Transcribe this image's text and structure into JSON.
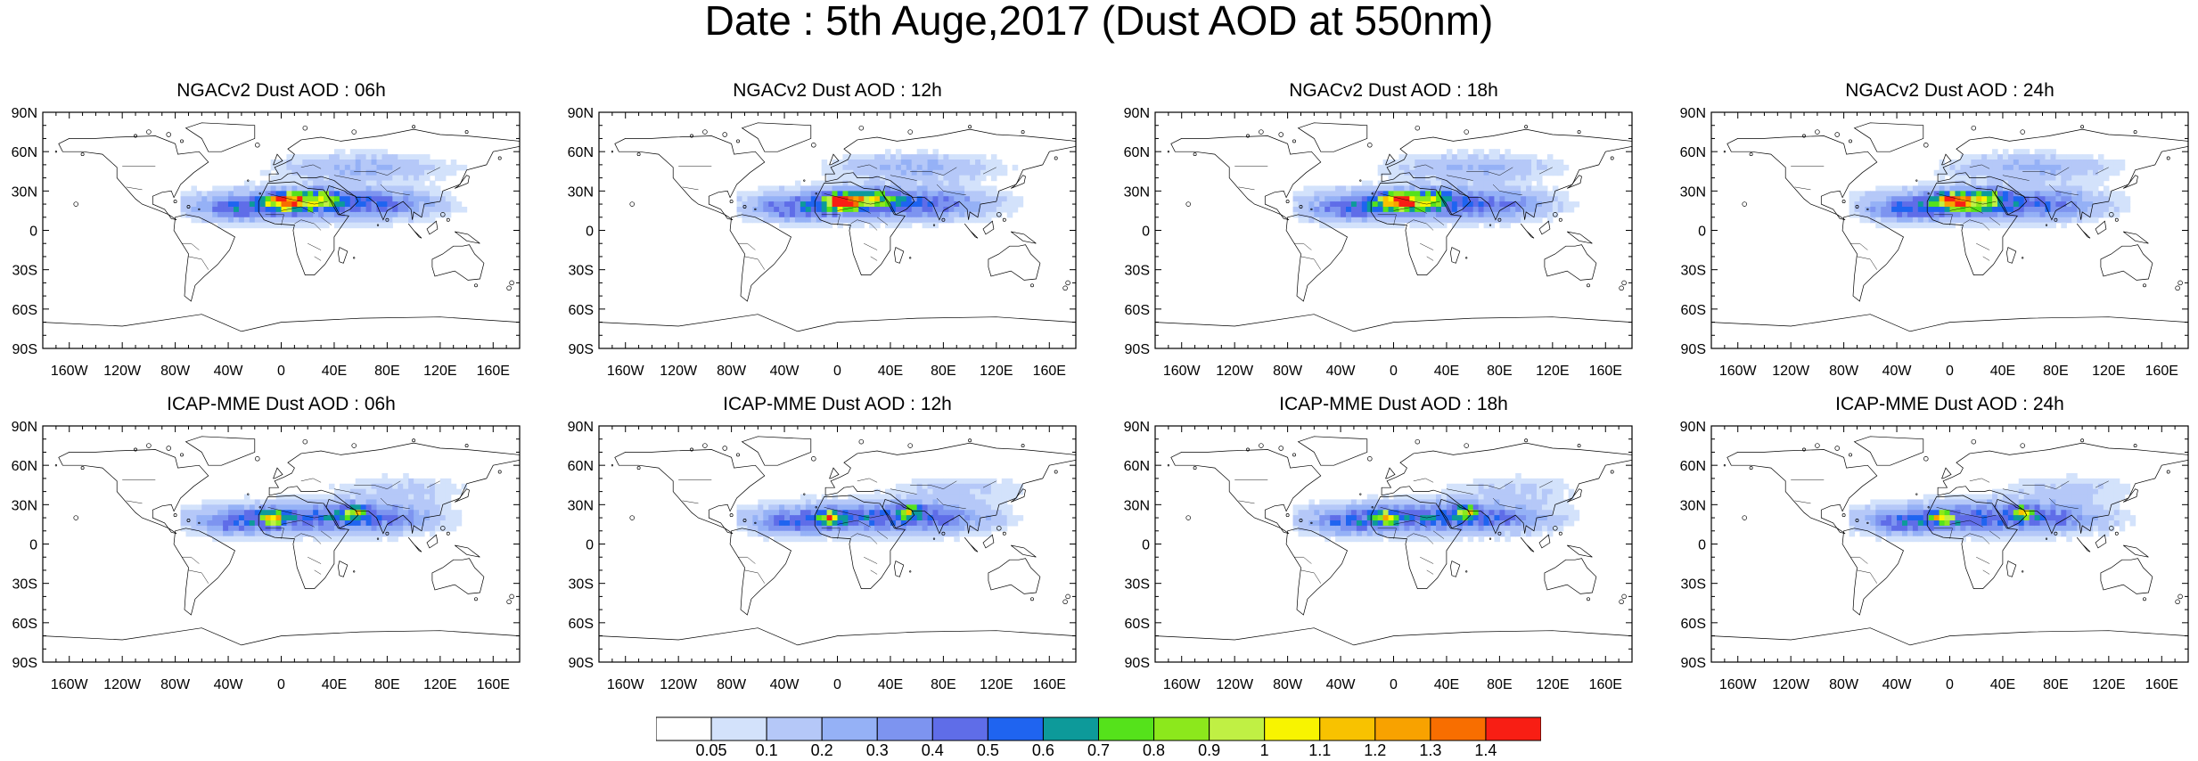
{
  "title": "Date : 5th Auge,2017 (Dust AOD at 550nm)",
  "panels": [
    {
      "title": "NGACv2 Dust AOD : 06h",
      "model": "NGACv2",
      "hour": "06h"
    },
    {
      "title": "NGACv2 Dust AOD : 12h",
      "model": "NGACv2",
      "hour": "12h"
    },
    {
      "title": "NGACv2 Dust AOD : 18h",
      "model": "NGACv2",
      "hour": "18h"
    },
    {
      "title": "NGACv2 Dust AOD : 24h",
      "model": "NGACv2",
      "hour": "24h"
    },
    {
      "title": "ICAP-MME Dust AOD : 06h",
      "model": "ICAP-MME",
      "hour": "06h"
    },
    {
      "title": "ICAP-MME Dust AOD : 12h",
      "model": "ICAP-MME",
      "hour": "12h"
    },
    {
      "title": "ICAP-MME Dust AOD : 18h",
      "model": "ICAP-MME",
      "hour": "18h"
    },
    {
      "title": "ICAP-MME Dust AOD : 24h",
      "model": "ICAP-MME",
      "hour": "24h"
    }
  ],
  "lat_ticks": [
    "90N",
    "60N",
    "30N",
    "0",
    "30S",
    "60S",
    "90S"
  ],
  "lon_ticks": [
    "160W",
    "120W",
    "80W",
    "40W",
    "0",
    "40E",
    "80E",
    "120E",
    "160E"
  ],
  "colorbar": {
    "levels": [
      "0.05",
      "0.1",
      "0.2",
      "0.3",
      "0.4",
      "0.5",
      "0.6",
      "0.7",
      "0.8",
      "0.9",
      "1",
      "1.1",
      "1.2",
      "1.3",
      "1.4"
    ],
    "colors": [
      "#ffffff",
      "#d3e2fb",
      "#b5c8f8",
      "#95b1f6",
      "#7d94f0",
      "#5f6de8",
      "#1f64f0",
      "#0d9a9a",
      "#55e21b",
      "#8ce81c",
      "#c0f044",
      "#f8f400",
      "#f8c200",
      "#f8a200",
      "#f86e00",
      "#f81e14"
    ]
  }
}
